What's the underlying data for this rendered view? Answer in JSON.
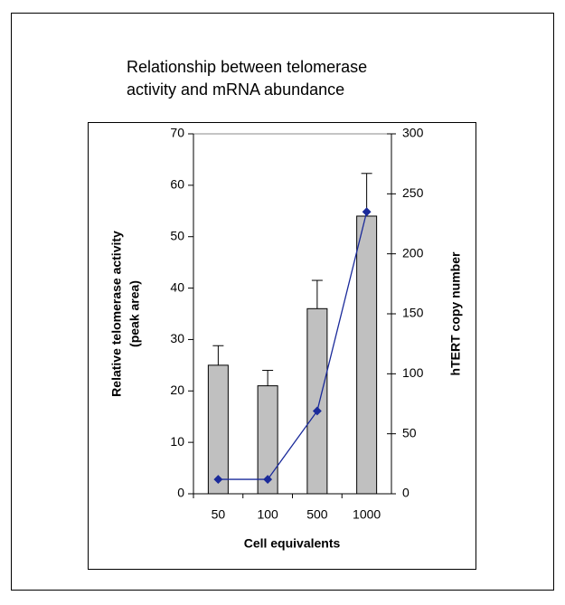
{
  "chart_data": {
    "type": "bar",
    "title": [
      "Relationship between telomerase",
      "activity and mRNA abundance"
    ],
    "xlabel": "Cell equivalents",
    "ylabel": [
      "Relative telomerase activity",
      "(peak area)"
    ],
    "y2label": "hTERT copy number",
    "categories": [
      "50",
      "100",
      "500",
      "1000"
    ],
    "series": [
      {
        "type": "bar",
        "color": "#c0c0c0",
        "values": [
          25,
          21,
          36,
          54
        ],
        "errors": [
          3.8,
          3,
          5.5,
          8.3
        ]
      },
      {
        "type": "line",
        "axis": "y2",
        "color": "#1a2a9a",
        "values": [
          12,
          12,
          69,
          235
        ]
      }
    ],
    "ylim": [
      0,
      70
    ],
    "yticks": [
      0,
      10,
      20,
      30,
      40,
      50,
      60,
      70
    ],
    "y2lim": [
      0,
      300
    ],
    "y2ticks": [
      0,
      50,
      100,
      150,
      200,
      250,
      300
    ]
  }
}
